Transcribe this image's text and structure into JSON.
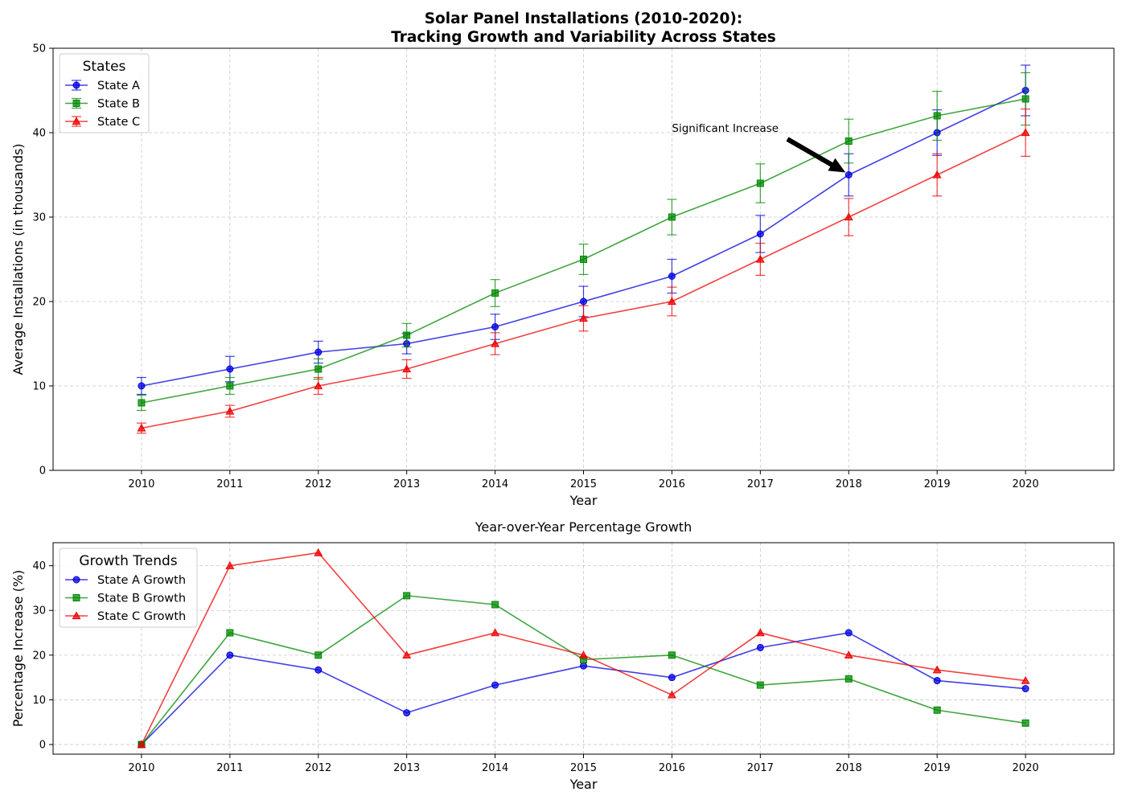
{
  "chart_data": [
    {
      "type": "line",
      "title": "Solar Panel Installations (2010-2020):",
      "subtitle": "Tracking Growth and Variability Across States",
      "xlabel": "Year",
      "ylabel": "Average Installations (in thousands)",
      "x": [
        2010,
        2011,
        2012,
        2013,
        2014,
        2015,
        2016,
        2017,
        2018,
        2019,
        2020
      ],
      "xlim": [
        2009,
        2021
      ],
      "ylim": [
        0,
        50
      ],
      "yticks": [
        0,
        10,
        20,
        30,
        40,
        50
      ],
      "grid": true,
      "legend": {
        "title": "States",
        "placement": "top-left"
      },
      "series": [
        {
          "name": "State A",
          "color": "#0000dd",
          "marker": "circle",
          "values": [
            10,
            12,
            14,
            15,
            17,
            20,
            23,
            28,
            35,
            40,
            45
          ],
          "errors": [
            1.0,
            1.5,
            1.3,
            1.2,
            1.5,
            1.8,
            2.0,
            2.2,
            2.5,
            2.7,
            3.0
          ]
        },
        {
          "name": "State B",
          "color": "#008800",
          "marker": "square",
          "values": [
            8,
            10,
            12,
            16,
            21,
            25,
            30,
            34,
            39,
            42,
            44
          ],
          "errors": [
            0.9,
            1.0,
            1.2,
            1.4,
            1.6,
            1.8,
            2.1,
            2.3,
            2.6,
            2.9,
            3.1
          ]
        },
        {
          "name": "State C",
          "color": "#ee0000",
          "marker": "triangle",
          "values": [
            5,
            7,
            10,
            12,
            15,
            18,
            20,
            25,
            30,
            35,
            40
          ],
          "errors": [
            0.6,
            0.7,
            1.0,
            1.1,
            1.3,
            1.5,
            1.7,
            1.9,
            2.2,
            2.5,
            2.8
          ]
        }
      ],
      "annotation": {
        "text": "Significant Increase",
        "x": 2018,
        "y": 35,
        "text_x": 2016,
        "text_y": 40
      }
    },
    {
      "type": "line",
      "title": "Year-over-Year Percentage Growth",
      "xlabel": "Year",
      "ylabel": "Percentage Increase (%)",
      "x": [
        2010,
        2011,
        2012,
        2013,
        2014,
        2015,
        2016,
        2017,
        2018,
        2019,
        2020
      ],
      "xlim": [
        2009,
        2021
      ],
      "ylim": [
        -2.15,
        45.15
      ],
      "yticks": [
        0,
        10,
        20,
        30,
        40
      ],
      "grid": true,
      "legend": {
        "title": "Growth Trends",
        "placement": "top-left"
      },
      "series": [
        {
          "name": "State A Growth",
          "color": "#0000dd",
          "marker": "circle",
          "values": [
            0,
            20,
            16.7,
            7.1,
            13.3,
            17.6,
            15,
            21.7,
            25,
            14.3,
            12.5
          ]
        },
        {
          "name": "State B Growth",
          "color": "#008800",
          "marker": "square",
          "values": [
            0,
            25,
            20,
            33.3,
            31.3,
            19,
            20,
            13.3,
            14.7,
            7.7,
            4.8
          ]
        },
        {
          "name": "State C Growth",
          "color": "#ee0000",
          "marker": "triangle",
          "values": [
            0,
            40,
            42.9,
            20,
            25,
            20,
            11.1,
            25,
            20,
            16.7,
            14.3
          ]
        }
      ]
    }
  ]
}
